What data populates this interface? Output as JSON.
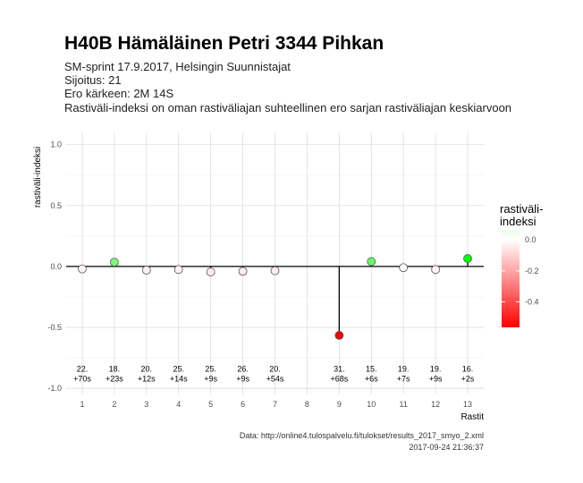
{
  "title": "H40B Hämäläinen Petri 3344 Pihkan",
  "subtitle_lines": [
    "SM-sprint 17.9.2017, Helsingin Suunnistajat",
    "Sijoitus: 21",
    "Ero kärkeen: 2M 14S",
    "Rastiväli-indeksi on oman rastiväliajan suhteellinen ero sarjan rastiväliajan keskiarvoon"
  ],
  "caption_lines": [
    "Data: http://online4.tulospalvelu.fi/tulokset/results_2017_smyo_2.xml",
    "2017-09-24 21:36:37"
  ],
  "colors": {
    "low": "#ff0000",
    "mid": "#ffffff",
    "high": "#00ff00",
    "panel_bg": "#ffffff",
    "grid": "#dddddd",
    "zero_line": "#000000"
  },
  "chart_data": {
    "type": "scatter",
    "xlabel": "Rastit",
    "ylabel": "rastiväli-indeksi",
    "xlim": [
      0.5,
      13.5
    ],
    "ylim": [
      -1.05,
      1.1
    ],
    "x_ticks": [
      1,
      2,
      3,
      4,
      5,
      6,
      7,
      8,
      9,
      10,
      11,
      12,
      13
    ],
    "y_ticks": [
      -1.0,
      -0.5,
      0.0,
      0.5,
      1.0
    ],
    "y_tick_labels": [
      "-1.0",
      "-0.5",
      "0.0",
      "0.5",
      "1.0"
    ],
    "grid": true,
    "points": [
      {
        "x": 1,
        "y": -0.02,
        "place": "22.",
        "diff": "+70s"
      },
      {
        "x": 2,
        "y": 0.035,
        "place": "18.",
        "diff": "+23s"
      },
      {
        "x": 3,
        "y": -0.03,
        "place": "20.",
        "diff": "+12s"
      },
      {
        "x": 4,
        "y": -0.025,
        "place": "25.",
        "diff": "+14s"
      },
      {
        "x": 5,
        "y": -0.045,
        "place": "25.",
        "diff": "+9s"
      },
      {
        "x": 6,
        "y": -0.04,
        "place": "26.",
        "diff": "+9s"
      },
      {
        "x": 7,
        "y": -0.035,
        "place": "20.",
        "diff": "+54s"
      },
      {
        "x": 9,
        "y": -0.565,
        "place": "31.",
        "diff": "+68s"
      },
      {
        "x": 10,
        "y": 0.04,
        "place": "15.",
        "diff": "+6s"
      },
      {
        "x": 11,
        "y": -0.01,
        "place": "19.",
        "diff": "+7s"
      },
      {
        "x": 12,
        "y": -0.025,
        "place": "19.",
        "diff": "+9s"
      },
      {
        "x": 13,
        "y": 0.065,
        "place": "16.",
        "diff": "+2s"
      }
    ],
    "annotation_y": -0.9,
    "legend": {
      "title_lines": [
        "rastiväli-",
        "indeksi"
      ],
      "position": "right",
      "range": [
        -0.565,
        0.065
      ],
      "ticks": [
        0.0,
        -0.2,
        -0.4
      ],
      "tick_labels": [
        "0.0",
        "-0.2",
        "-0.4"
      ]
    }
  }
}
